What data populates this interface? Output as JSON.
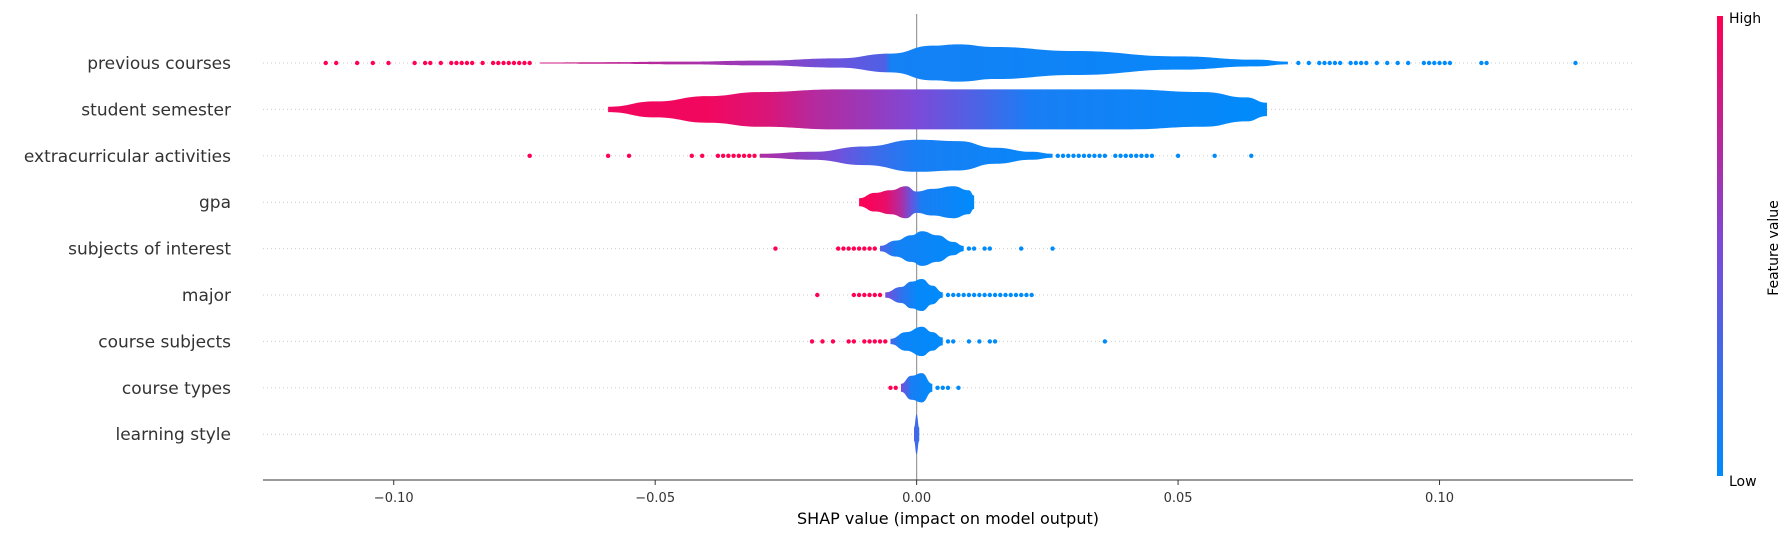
{
  "chart_data": {
    "type": "violin",
    "title": "",
    "xlabel": "SHAP value (impact on model output)",
    "ylabel": "",
    "xlim": [
      -0.125,
      0.137
    ],
    "xticks": [
      -0.1,
      -0.05,
      0.0,
      0.05,
      0.1
    ],
    "xtick_labels": [
      "−0.10",
      "−0.05",
      "0.00",
      "0.05",
      "0.10"
    ],
    "grid": "dotted horizontal row lines",
    "colorbar": {
      "label": "Feature value",
      "high_label": "High",
      "low_label": "Low",
      "low_color": "#008bfb",
      "mid_color": "#7c4ad8",
      "high_color": "#ff0052"
    },
    "features": [
      {
        "name": "previous courses",
        "body_range": [
          -0.072,
          0.071
        ],
        "density": [
          [
            -0.072,
            0.4
          ],
          [
            -0.06,
            0.6
          ],
          [
            -0.045,
            1.0
          ],
          [
            -0.03,
            1.8
          ],
          [
            -0.015,
            3.5
          ],
          [
            -0.005,
            7
          ],
          [
            0.003,
            13
          ],
          [
            0.008,
            14
          ],
          [
            0.015,
            12
          ],
          [
            0.03,
            9
          ],
          [
            0.05,
            5
          ],
          [
            0.065,
            2.5
          ],
          [
            0.071,
            1
          ]
        ],
        "color_stops": [
          [
            -0.072,
            0.82
          ],
          [
            -0.05,
            0.72
          ],
          [
            -0.03,
            0.6
          ],
          [
            -0.015,
            0.42
          ],
          [
            -0.006,
            0.32
          ],
          [
            -0.005,
            0.08
          ],
          [
            0.071,
            0.02
          ]
        ],
        "outliers": [
          [
            -0.113,
            1
          ],
          [
            -0.111,
            1
          ],
          [
            -0.107,
            1
          ],
          [
            -0.104,
            1
          ],
          [
            -0.101,
            1
          ],
          [
            -0.096,
            1
          ],
          [
            -0.094,
            1
          ],
          [
            -0.093,
            1
          ],
          [
            -0.091,
            1
          ],
          [
            -0.089,
            1
          ],
          [
            -0.088,
            1
          ],
          [
            -0.087,
            1
          ],
          [
            -0.086,
            1
          ],
          [
            -0.085,
            1
          ],
          [
            -0.083,
            1
          ],
          [
            -0.081,
            1
          ],
          [
            -0.08,
            1
          ],
          [
            -0.079,
            1
          ],
          [
            -0.078,
            1
          ],
          [
            -0.077,
            1
          ],
          [
            -0.076,
            1
          ],
          [
            -0.075,
            1
          ],
          [
            -0.074,
            1
          ],
          [
            0.073,
            0
          ],
          [
            0.075,
            0
          ],
          [
            0.077,
            0
          ],
          [
            0.078,
            0
          ],
          [
            0.079,
            0
          ],
          [
            0.08,
            0
          ],
          [
            0.081,
            0
          ],
          [
            0.083,
            0
          ],
          [
            0.084,
            0
          ],
          [
            0.085,
            0
          ],
          [
            0.086,
            0
          ],
          [
            0.088,
            0
          ],
          [
            0.09,
            0
          ],
          [
            0.092,
            0
          ],
          [
            0.094,
            0
          ],
          [
            0.097,
            0
          ],
          [
            0.098,
            0
          ],
          [
            0.099,
            0
          ],
          [
            0.1,
            0
          ],
          [
            0.101,
            0
          ],
          [
            0.102,
            0
          ],
          [
            0.108,
            0
          ],
          [
            0.109,
            0
          ],
          [
            0.126,
            0
          ]
        ]
      },
      {
        "name": "student semester",
        "body_range": [
          -0.059,
          0.067
        ],
        "density": [
          [
            -0.059,
            2
          ],
          [
            -0.05,
            6
          ],
          [
            -0.04,
            10
          ],
          [
            -0.03,
            13
          ],
          [
            -0.015,
            15
          ],
          [
            0,
            15
          ],
          [
            0.02,
            15
          ],
          [
            0.04,
            15
          ],
          [
            0.055,
            13
          ],
          [
            0.063,
            9
          ],
          [
            0.067,
            5
          ]
        ],
        "color_stops": [
          [
            -0.059,
            0.95
          ],
          [
            -0.04,
            0.95
          ],
          [
            -0.028,
            0.85
          ],
          [
            -0.02,
            0.72
          ],
          [
            -0.01,
            0.62
          ],
          [
            0,
            0.5
          ],
          [
            0.012,
            0.3
          ],
          [
            0.022,
            0.1
          ],
          [
            0.067,
            0.0
          ]
        ],
        "outliers": []
      },
      {
        "name": "extracurricular activities",
        "body_range": [
          -0.03,
          0.026
        ],
        "density": [
          [
            -0.03,
            1.5
          ],
          [
            -0.02,
            3
          ],
          [
            -0.01,
            7
          ],
          [
            0,
            12
          ],
          [
            0.008,
            11
          ],
          [
            0.015,
            6
          ],
          [
            0.022,
            3
          ],
          [
            0.026,
            1.5
          ]
        ],
        "color_stops": [
          [
            -0.03,
            0.7
          ],
          [
            -0.015,
            0.45
          ],
          [
            -0.008,
            0.25
          ],
          [
            0,
            0.1
          ],
          [
            0.026,
            0.02
          ]
        ],
        "outliers": [
          [
            -0.074,
            1
          ],
          [
            -0.059,
            1
          ],
          [
            -0.055,
            1
          ],
          [
            -0.043,
            1
          ],
          [
            -0.041,
            1
          ],
          [
            -0.038,
            1
          ],
          [
            -0.037,
            1
          ],
          [
            -0.036,
            1
          ],
          [
            -0.035,
            1
          ],
          [
            -0.034,
            1
          ],
          [
            -0.033,
            1
          ],
          [
            -0.032,
            1
          ],
          [
            -0.031,
            1
          ],
          [
            0.027,
            0
          ],
          [
            0.028,
            0
          ],
          [
            0.029,
            0
          ],
          [
            0.03,
            0
          ],
          [
            0.031,
            0
          ],
          [
            0.032,
            0
          ],
          [
            0.033,
            0
          ],
          [
            0.034,
            0
          ],
          [
            0.035,
            0
          ],
          [
            0.036,
            0
          ],
          [
            0.038,
            0
          ],
          [
            0.039,
            0
          ],
          [
            0.04,
            0
          ],
          [
            0.041,
            0
          ],
          [
            0.042,
            0
          ],
          [
            0.043,
            0
          ],
          [
            0.044,
            0
          ],
          [
            0.045,
            0
          ],
          [
            0.05,
            0
          ],
          [
            0.057,
            0
          ],
          [
            0.064,
            0
          ]
        ]
      },
      {
        "name": "gpa",
        "body_range": [
          -0.011,
          0.011
        ],
        "density": [
          [
            -0.011,
            3
          ],
          [
            -0.008,
            7
          ],
          [
            -0.005,
            9
          ],
          [
            -0.002,
            12
          ],
          [
            0,
            8
          ],
          [
            0.003,
            10
          ],
          [
            0.007,
            12
          ],
          [
            0.01,
            9
          ],
          [
            0.011,
            5
          ]
        ],
        "color_stops": [
          [
            -0.011,
            1
          ],
          [
            -0.006,
            0.92
          ],
          [
            -0.003,
            0.7
          ],
          [
            -0.001,
            0.4
          ],
          [
            0.001,
            0.1
          ],
          [
            0.011,
            0
          ]
        ],
        "outliers": []
      },
      {
        "name": "subjects of interest",
        "body_range": [
          -0.007,
          0.009
        ],
        "density": [
          [
            -0.007,
            2
          ],
          [
            -0.004,
            6
          ],
          [
            -0.001,
            10
          ],
          [
            0.001,
            13
          ],
          [
            0.004,
            10
          ],
          [
            0.007,
            5
          ],
          [
            0.009,
            2
          ]
        ],
        "color_stops": [
          [
            -0.007,
            0.35
          ],
          [
            -0.004,
            0.08
          ],
          [
            0.009,
            0
          ]
        ],
        "outliers": [
          [
            -0.027,
            1
          ],
          [
            -0.015,
            1
          ],
          [
            -0.014,
            1
          ],
          [
            -0.013,
            1
          ],
          [
            -0.012,
            1
          ],
          [
            -0.011,
            1
          ],
          [
            -0.01,
            1
          ],
          [
            -0.009,
            1
          ],
          [
            -0.008,
            1
          ],
          [
            0.01,
            0
          ],
          [
            0.011,
            0
          ],
          [
            0.013,
            0
          ],
          [
            0.014,
            0
          ],
          [
            0.02,
            0
          ],
          [
            0.026,
            0
          ]
        ]
      },
      {
        "name": "major",
        "body_range": [
          -0.006,
          0.005
        ],
        "density": [
          [
            -0.006,
            2
          ],
          [
            -0.003,
            6
          ],
          [
            -0.001,
            10
          ],
          [
            0.001,
            12
          ],
          [
            0.003,
            7
          ],
          [
            0.005,
            2
          ]
        ],
        "color_stops": [
          [
            -0.006,
            0.5
          ],
          [
            -0.003,
            0.2
          ],
          [
            0,
            0.02
          ],
          [
            0.005,
            0
          ]
        ],
        "outliers": [
          [
            -0.019,
            1
          ],
          [
            -0.012,
            1
          ],
          [
            -0.011,
            1
          ],
          [
            -0.01,
            1
          ],
          [
            -0.009,
            1
          ],
          [
            -0.008,
            1
          ],
          [
            -0.007,
            1
          ],
          [
            0.006,
            0
          ],
          [
            0.007,
            0
          ],
          [
            0.008,
            0
          ],
          [
            0.009,
            0
          ],
          [
            0.01,
            0
          ],
          [
            0.011,
            0
          ],
          [
            0.012,
            0
          ],
          [
            0.013,
            0
          ],
          [
            0.014,
            0
          ],
          [
            0.015,
            0
          ],
          [
            0.016,
            0
          ],
          [
            0.017,
            0
          ],
          [
            0.018,
            0
          ],
          [
            0.019,
            0
          ],
          [
            0.02,
            0
          ],
          [
            0.021,
            0
          ],
          [
            0.022,
            0
          ]
        ]
      },
      {
        "name": "course subjects",
        "body_range": [
          -0.005,
          0.005
        ],
        "density": [
          [
            -0.005,
            2
          ],
          [
            -0.002,
            7
          ],
          [
            0.001,
            11
          ],
          [
            0.003,
            7
          ],
          [
            0.005,
            3
          ]
        ],
        "color_stops": [
          [
            -0.005,
            0.3
          ],
          [
            -0.003,
            0.05
          ],
          [
            0.005,
            0
          ]
        ],
        "outliers": [
          [
            -0.02,
            1
          ],
          [
            -0.018,
            1
          ],
          [
            -0.016,
            1
          ],
          [
            -0.013,
            1
          ],
          [
            -0.012,
            1
          ],
          [
            -0.01,
            1
          ],
          [
            -0.009,
            1
          ],
          [
            -0.008,
            1
          ],
          [
            -0.007,
            1
          ],
          [
            -0.006,
            1
          ],
          [
            0.006,
            0
          ],
          [
            0.007,
            0
          ],
          [
            0.01,
            0
          ],
          [
            0.012,
            0
          ],
          [
            0.014,
            0
          ],
          [
            0.015,
            0
          ],
          [
            0.036,
            0
          ]
        ]
      },
      {
        "name": "course types",
        "body_range": [
          -0.003,
          0.003
        ],
        "density": [
          [
            -0.003,
            3
          ],
          [
            -0.001,
            9
          ],
          [
            0.001,
            11
          ],
          [
            0.003,
            3
          ]
        ],
        "color_stops": [
          [
            -0.003,
            0.5
          ],
          [
            -0.001,
            0.1
          ],
          [
            0.003,
            0
          ]
        ],
        "outliers": [
          [
            -0.005,
            1
          ],
          [
            -0.004,
            1
          ],
          [
            0.004,
            0
          ],
          [
            0.005,
            0
          ],
          [
            0.006,
            0
          ],
          [
            0.008,
            0
          ]
        ]
      },
      {
        "name": "learning style",
        "body_range": [
          -0.0005,
          0.0005
        ],
        "density": [
          [
            -0.0005,
            5
          ],
          [
            0,
            15
          ],
          [
            0.0005,
            5
          ]
        ],
        "color_stops": [
          [
            -0.0005,
            0.3
          ],
          [
            0.0005,
            0.2
          ]
        ],
        "outliers": []
      }
    ]
  }
}
